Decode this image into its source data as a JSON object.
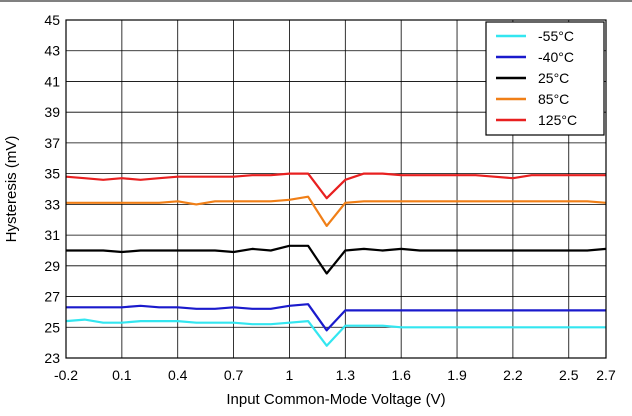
{
  "chart_data": {
    "type": "line",
    "title": "",
    "xlabel": "Input Common-Mode Voltage (V)",
    "ylabel": "Hysteresis (mV)",
    "xlim": [
      -0.2,
      2.7
    ],
    "ylim": [
      23,
      45
    ],
    "xticks": [
      "-0.2",
      "0.1",
      "0.4",
      "0.7",
      "1",
      "1.3",
      "1.6",
      "1.9",
      "2.2",
      "2.5",
      "2.7"
    ],
    "yticks": [
      "23",
      "25",
      "27",
      "29",
      "31",
      "33",
      "35",
      "37",
      "39",
      "41",
      "43",
      "45"
    ],
    "grid": true,
    "legend_position": "top-right",
    "x": [
      -0.2,
      -0.1,
      0.0,
      0.1,
      0.2,
      0.3,
      0.4,
      0.5,
      0.6,
      0.7,
      0.8,
      0.9,
      1.0,
      1.1,
      1.2,
      1.3,
      1.4,
      1.5,
      1.6,
      1.7,
      1.8,
      1.9,
      2.0,
      2.1,
      2.2,
      2.3,
      2.4,
      2.5,
      2.6,
      2.7
    ],
    "series": [
      {
        "name": "-55°C",
        "color": "#33e6f0",
        "values": [
          25.4,
          25.5,
          25.3,
          25.3,
          25.4,
          25.4,
          25.4,
          25.3,
          25.3,
          25.3,
          25.2,
          25.2,
          25.3,
          25.4,
          23.8,
          25.1,
          25.1,
          25.1,
          25.0,
          25.0,
          25.0,
          25.0,
          25.0,
          25.0,
          25.0,
          25.0,
          25.0,
          25.0,
          25.0,
          25.0
        ]
      },
      {
        "name": "-40°C",
        "color": "#1a1acc",
        "values": [
          26.3,
          26.3,
          26.3,
          26.3,
          26.4,
          26.3,
          26.3,
          26.2,
          26.2,
          26.3,
          26.2,
          26.2,
          26.4,
          26.5,
          24.8,
          26.1,
          26.1,
          26.1,
          26.1,
          26.1,
          26.1,
          26.1,
          26.1,
          26.1,
          26.1,
          26.1,
          26.1,
          26.1,
          26.1,
          26.1
        ]
      },
      {
        "name": "25°C",
        "color": "#000000",
        "values": [
          30.0,
          30.0,
          30.0,
          29.9,
          30.0,
          30.0,
          30.0,
          30.0,
          30.0,
          29.9,
          30.1,
          30.0,
          30.3,
          30.3,
          28.5,
          30.0,
          30.1,
          30.0,
          30.1,
          30.0,
          30.0,
          30.0,
          30.0,
          30.0,
          30.0,
          30.0,
          30.0,
          30.0,
          30.0,
          30.1
        ]
      },
      {
        "name": "85°C",
        "color": "#f07f17",
        "values": [
          33.1,
          33.1,
          33.1,
          33.1,
          33.1,
          33.1,
          33.2,
          33.0,
          33.2,
          33.2,
          33.2,
          33.2,
          33.3,
          33.5,
          31.6,
          33.1,
          33.2,
          33.2,
          33.2,
          33.2,
          33.2,
          33.2,
          33.2,
          33.2,
          33.2,
          33.2,
          33.2,
          33.2,
          33.2,
          33.1
        ]
      },
      {
        "name": "125°C",
        "color": "#e82020",
        "values": [
          34.8,
          34.7,
          34.6,
          34.7,
          34.6,
          34.7,
          34.8,
          34.8,
          34.8,
          34.8,
          34.9,
          34.9,
          35.0,
          35.0,
          33.4,
          34.6,
          35.0,
          35.0,
          34.9,
          34.9,
          34.9,
          34.9,
          34.9,
          34.8,
          34.7,
          34.9,
          34.9,
          34.9,
          34.9,
          34.9
        ]
      }
    ]
  }
}
